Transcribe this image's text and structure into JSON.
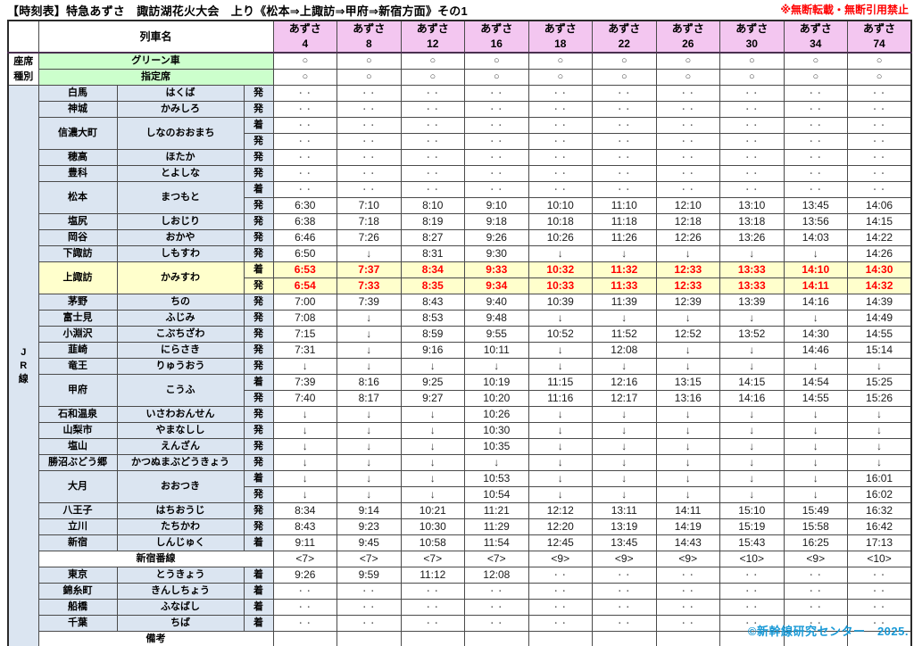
{
  "page": {
    "title": "【時刻表】特急あずさ　諏訪湖花火大会　上り《松本⇒上諏訪⇒甲府⇒新宿方面》その1",
    "notice": "※無断転載・無断引用禁止",
    "copyright": "©新幹線研究センター　2025."
  },
  "colors": {
    "header_pink": "#f3c6f0",
    "seat_green": "#ccffcc",
    "station_blue": "#dbe5f1",
    "highlight_yellow": "#ffffcc",
    "highlight_red_text": "#ff0000",
    "notice_red": "#ff0000",
    "copyright_blue": "#1899d6"
  },
  "table": {
    "corner_label": "",
    "train_name_header": "列車名",
    "seat_type_header": [
      "座席",
      "種別"
    ],
    "jr_line_label": [
      "J",
      "R",
      "線"
    ],
    "trains": [
      {
        "brand": "あずさ",
        "number": "4"
      },
      {
        "brand": "あずさ",
        "number": "8"
      },
      {
        "brand": "あずさ",
        "number": "12"
      },
      {
        "brand": "あずさ",
        "number": "16"
      },
      {
        "brand": "あずさ",
        "number": "18"
      },
      {
        "brand": "あずさ",
        "number": "22"
      },
      {
        "brand": "あずさ",
        "number": "26"
      },
      {
        "brand": "あずさ",
        "number": "30"
      },
      {
        "brand": "あずさ",
        "number": "34"
      },
      {
        "brand": "あずさ",
        "number": "74"
      }
    ],
    "seat_rows": [
      {
        "label": "グリーン車",
        "values": [
          "○",
          "○",
          "○",
          "○",
          "○",
          "○",
          "○",
          "○",
          "○",
          "○"
        ]
      },
      {
        "label": "指定席",
        "values": [
          "○",
          "○",
          "○",
          "○",
          "○",
          "○",
          "○",
          "○",
          "○",
          "○"
        ]
      }
    ],
    "body": [
      {
        "type": "station",
        "kanji": "白馬",
        "kana": "はくば",
        "subrows": [
          {
            "kind": "発",
            "values": [
              "・・",
              "・・",
              "・・",
              "・・",
              "・・",
              "・・",
              "・・",
              "・・",
              "・・",
              "・・"
            ]
          }
        ]
      },
      {
        "type": "station",
        "kanji": "神城",
        "kana": "かみしろ",
        "subrows": [
          {
            "kind": "発",
            "values": [
              "・・",
              "・・",
              "・・",
              "・・",
              "・・",
              "・・",
              "・・",
              "・・",
              "・・",
              "・・"
            ]
          }
        ]
      },
      {
        "type": "station",
        "kanji": "信濃大町",
        "kana": "しなのおおまち",
        "subrows": [
          {
            "kind": "着",
            "values": [
              "・・",
              "・・",
              "・・",
              "・・",
              "・・",
              "・・",
              "・・",
              "・・",
              "・・",
              "・・"
            ]
          },
          {
            "kind": "発",
            "values": [
              "・・",
              "・・",
              "・・",
              "・・",
              "・・",
              "・・",
              "・・",
              "・・",
              "・・",
              "・・"
            ]
          }
        ]
      },
      {
        "type": "station",
        "kanji": "穂高",
        "kana": "ほたか",
        "subrows": [
          {
            "kind": "発",
            "values": [
              "・・",
              "・・",
              "・・",
              "・・",
              "・・",
              "・・",
              "・・",
              "・・",
              "・・",
              "・・"
            ]
          }
        ]
      },
      {
        "type": "station",
        "kanji": "豊科",
        "kana": "とよしな",
        "subrows": [
          {
            "kind": "発",
            "values": [
              "・・",
              "・・",
              "・・",
              "・・",
              "・・",
              "・・",
              "・・",
              "・・",
              "・・",
              "・・"
            ]
          }
        ]
      },
      {
        "type": "station",
        "kanji": "松本",
        "kana": "まつもと",
        "subrows": [
          {
            "kind": "着",
            "values": [
              "・・",
              "・・",
              "・・",
              "・・",
              "・・",
              "・・",
              "・・",
              "・・",
              "・・",
              "・・"
            ]
          },
          {
            "kind": "発",
            "values": [
              "6:30",
              "7:10",
              "8:10",
              "9:10",
              "10:10",
              "11:10",
              "12:10",
              "13:10",
              "13:45",
              "14:06"
            ]
          }
        ]
      },
      {
        "type": "station",
        "kanji": "塩尻",
        "kana": "しおじり",
        "subrows": [
          {
            "kind": "発",
            "values": [
              "6:38",
              "7:18",
              "8:19",
              "9:18",
              "10:18",
              "11:18",
              "12:18",
              "13:18",
              "13:56",
              "14:15"
            ]
          }
        ]
      },
      {
        "type": "station",
        "kanji": "岡谷",
        "kana": "おかや",
        "subrows": [
          {
            "kind": "発",
            "values": [
              "6:46",
              "7:26",
              "8:27",
              "9:26",
              "10:26",
              "11:26",
              "12:26",
              "13:26",
              "14:03",
              "14:22"
            ]
          }
        ]
      },
      {
        "type": "station",
        "kanji": "下諏訪",
        "kana": "しもすわ",
        "subrows": [
          {
            "kind": "発",
            "values": [
              "6:50",
              "↓",
              "8:31",
              "9:30",
              "↓",
              "↓",
              "↓",
              "↓",
              "↓",
              "14:26"
            ]
          }
        ]
      },
      {
        "type": "station",
        "kanji": "上諏訪",
        "kana": "かみすわ",
        "highlight": true,
        "subrows": [
          {
            "kind": "着",
            "values": [
              "6:53",
              "7:37",
              "8:34",
              "9:33",
              "10:32",
              "11:32",
              "12:33",
              "13:33",
              "14:10",
              "14:30"
            ]
          },
          {
            "kind": "発",
            "values": [
              "6:54",
              "7:33",
              "8:35",
              "9:34",
              "10:33",
              "11:33",
              "12:33",
              "13:33",
              "14:11",
              "14:32"
            ]
          }
        ]
      },
      {
        "type": "station",
        "kanji": "茅野",
        "kana": "ちの",
        "subrows": [
          {
            "kind": "発",
            "values": [
              "7:00",
              "7:39",
              "8:43",
              "9:40",
              "10:39",
              "11:39",
              "12:39",
              "13:39",
              "14:16",
              "14:39"
            ]
          }
        ]
      },
      {
        "type": "station",
        "kanji": "富士見",
        "kana": "ふじみ",
        "subrows": [
          {
            "kind": "発",
            "values": [
              "7:08",
              "↓",
              "8:53",
              "9:48",
              "↓",
              "↓",
              "↓",
              "↓",
              "↓",
              "14:49"
            ]
          }
        ]
      },
      {
        "type": "station",
        "kanji": "小淵沢",
        "kana": "こぶちざわ",
        "subrows": [
          {
            "kind": "発",
            "values": [
              "7:15",
              "↓",
              "8:59",
              "9:55",
              "10:52",
              "11:52",
              "12:52",
              "13:52",
              "14:30",
              "14:55"
            ]
          }
        ]
      },
      {
        "type": "station",
        "kanji": "韮崎",
        "kana": "にらさき",
        "subrows": [
          {
            "kind": "発",
            "values": [
              "7:31",
              "↓",
              "9:16",
              "10:11",
              "↓",
              "12:08",
              "↓",
              "↓",
              "14:46",
              "15:14"
            ]
          }
        ]
      },
      {
        "type": "station",
        "kanji": "竜王",
        "kana": "りゅうおう",
        "subrows": [
          {
            "kind": "発",
            "values": [
              "↓",
              "↓",
              "↓",
              "↓",
              "↓",
              "↓",
              "↓",
              "↓",
              "↓",
              "↓"
            ]
          }
        ]
      },
      {
        "type": "station",
        "kanji": "甲府",
        "kana": "こうふ",
        "subrows": [
          {
            "kind": "着",
            "values": [
              "7:39",
              "8:16",
              "9:25",
              "10:19",
              "11:15",
              "12:16",
              "13:15",
              "14:15",
              "14:54",
              "15:25"
            ]
          },
          {
            "kind": "発",
            "values": [
              "7:40",
              "8:17",
              "9:27",
              "10:20",
              "11:16",
              "12:17",
              "13:16",
              "14:16",
              "14:55",
              "15:26"
            ]
          }
        ]
      },
      {
        "type": "station",
        "kanji": "石和温泉",
        "kana": "いさわおんせん",
        "subrows": [
          {
            "kind": "発",
            "values": [
              "↓",
              "↓",
              "↓",
              "10:26",
              "↓",
              "↓",
              "↓",
              "↓",
              "↓",
              "↓"
            ]
          }
        ]
      },
      {
        "type": "station",
        "kanji": "山梨市",
        "kana": "やまなしし",
        "subrows": [
          {
            "kind": "発",
            "values": [
              "↓",
              "↓",
              "↓",
              "10:30",
              "↓",
              "↓",
              "↓",
              "↓",
              "↓",
              "↓"
            ]
          }
        ]
      },
      {
        "type": "station",
        "kanji": "塩山",
        "kana": "えんざん",
        "subrows": [
          {
            "kind": "発",
            "values": [
              "↓",
              "↓",
              "↓",
              "10:35",
              "↓",
              "↓",
              "↓",
              "↓",
              "↓",
              "↓"
            ]
          }
        ]
      },
      {
        "type": "station",
        "kanji": "勝沼ぶどう郷",
        "kana": "かつぬまぶどうきょう",
        "subrows": [
          {
            "kind": "発",
            "values": [
              "↓",
              "↓",
              "↓",
              "↓",
              "↓",
              "↓",
              "↓",
              "↓",
              "↓",
              "↓"
            ]
          }
        ]
      },
      {
        "type": "station",
        "kanji": "大月",
        "kana": "おおつき",
        "subrows": [
          {
            "kind": "着",
            "values": [
              "↓",
              "↓",
              "↓",
              "10:53",
              "↓",
              "↓",
              "↓",
              "↓",
              "↓",
              "16:01"
            ]
          },
          {
            "kind": "発",
            "values": [
              "↓",
              "↓",
              "↓",
              "10:54",
              "↓",
              "↓",
              "↓",
              "↓",
              "↓",
              "16:02"
            ]
          }
        ]
      },
      {
        "type": "station",
        "kanji": "八王子",
        "kana": "はちおうじ",
        "subrows": [
          {
            "kind": "発",
            "values": [
              "8:34",
              "9:14",
              "10:21",
              "11:21",
              "12:12",
              "13:11",
              "14:11",
              "15:10",
              "15:49",
              "16:32"
            ]
          }
        ]
      },
      {
        "type": "station",
        "kanji": "立川",
        "kana": "たちかわ",
        "subrows": [
          {
            "kind": "発",
            "values": [
              "8:43",
              "9:23",
              "10:30",
              "11:29",
              "12:20",
              "13:19",
              "14:19",
              "15:19",
              "15:58",
              "16:42"
            ]
          }
        ]
      },
      {
        "type": "station",
        "kanji": "新宿",
        "kana": "しんじゅく",
        "subrows": [
          {
            "kind": "着",
            "values": [
              "9:11",
              "9:45",
              "10:58",
              "11:54",
              "12:45",
              "13:45",
              "14:43",
              "15:43",
              "16:25",
              "17:13"
            ]
          }
        ]
      },
      {
        "type": "span",
        "label": "新宿番線",
        "values": [
          "<7>",
          "<7>",
          "<7>",
          "<7>",
          "<9>",
          "<9>",
          "<9>",
          "<10>",
          "<9>",
          "<10>"
        ]
      },
      {
        "type": "station",
        "kanji": "東京",
        "kana": "とうきょう",
        "subrows": [
          {
            "kind": "着",
            "values": [
              "9:26",
              "9:59",
              "11:12",
              "12:08",
              "・・",
              "・・",
              "・・",
              "・・",
              "・・",
              "・・"
            ]
          }
        ]
      },
      {
        "type": "station",
        "kanji": "錦糸町",
        "kana": "きんしちょう",
        "subrows": [
          {
            "kind": "着",
            "values": [
              "・・",
              "・・",
              "・・",
              "・・",
              "・・",
              "・・",
              "・・",
              "・・",
              "・・",
              "・・"
            ]
          }
        ]
      },
      {
        "type": "station",
        "kanji": "船橋",
        "kana": "ふなばし",
        "subrows": [
          {
            "kind": "着",
            "values": [
              "・・",
              "・・",
              "・・",
              "・・",
              "・・",
              "・・",
              "・・",
              "・・",
              "・・",
              "・・"
            ]
          }
        ]
      },
      {
        "type": "station",
        "kanji": "千葉",
        "kana": "ちば",
        "subrows": [
          {
            "kind": "着",
            "values": [
              "・・",
              "・・",
              "・・",
              "・・",
              "・・",
              "・・",
              "・・",
              "・・",
              "・・",
              "・・"
            ]
          }
        ]
      },
      {
        "type": "span",
        "label": "備考",
        "values": [
          "",
          "",
          "",
          "",
          "",
          "",
          "",
          "",
          "",
          ""
        ]
      }
    ]
  }
}
